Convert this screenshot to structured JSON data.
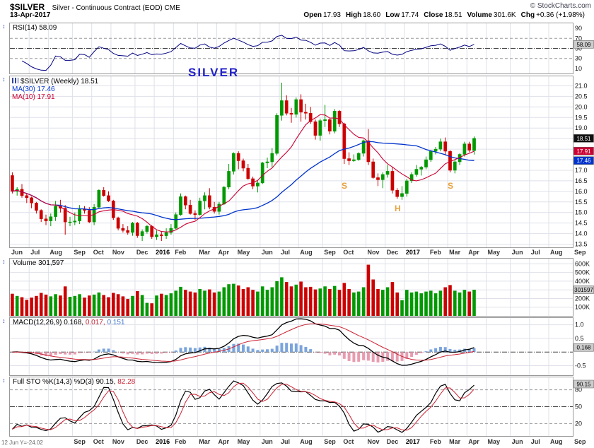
{
  "header": {
    "symbol": "$SILVER",
    "title": "Silver - Continuous Contract (EOD) CME",
    "copyright": "© StockCharts.com",
    "date": "13-Apr-2017",
    "quote": [
      {
        "label": "Open",
        "value": "17.93"
      },
      {
        "label": "High",
        "value": "18.60"
      },
      {
        "label": "Low",
        "value": "17.74"
      },
      {
        "label": "Close",
        "value": "18.51"
      },
      {
        "label": "Volume",
        "value": "301.6K"
      },
      {
        "label": "Chg",
        "value": "+0.36 (+1.98%)"
      }
    ]
  },
  "statusbar": "12 Jun Y=-24.02",
  "colors": {
    "up": "#009900",
    "down": "#cc0000",
    "ma10": "#cc0033",
    "ma30": "#0033cc",
    "rsi": "#000080",
    "macd_line": "#000000",
    "macd_signal": "#cc2233",
    "hist_pos": "#7aa4dc",
    "hist_neg": "#e89cb0",
    "sto_k": "#000000",
    "sto_d": "#cc2233",
    "grid": "#dfe0ea",
    "frame": "#999999",
    "annotation": "#e8a13c",
    "title_annotation": "#2222cc",
    "box_gray_bg": "#cccccc",
    "box_price_bg": "#111111"
  },
  "panels": {
    "rsi": {
      "legend": "RSI(14) 58.09",
      "ticks": [
        {
          "v": 90,
          "t": "90"
        },
        {
          "v": 70,
          "t": "70"
        },
        {
          "v": 50,
          "t": "50"
        },
        {
          "v": 30,
          "t": "30"
        },
        {
          "v": 10,
          "t": "10"
        }
      ],
      "box": {
        "v": 58.09,
        "t": "58.09"
      }
    },
    "price": {
      "legend_symbol": "$SILVER (Weekly) 18.51",
      "legend_ma30": "MA(30) 17.46",
      "legend_ma10": "MA(10) 17.91",
      "ticks": [
        {
          "v": 21.0,
          "t": "21.0"
        },
        {
          "v": 20.5,
          "t": "20.5"
        },
        {
          "v": 20.0,
          "t": "20.0"
        },
        {
          "v": 19.5,
          "t": "19.5"
        },
        {
          "v": 19.0,
          "t": "19.0"
        },
        {
          "v": 17.0,
          "t": "17.0"
        },
        {
          "v": 16.5,
          "t": "16.5"
        },
        {
          "v": 16.0,
          "t": "16.0"
        },
        {
          "v": 15.5,
          "t": "15.5"
        },
        {
          "v": 15.0,
          "t": "15.0"
        },
        {
          "v": 14.5,
          "t": "14.5"
        },
        {
          "v": 14.0,
          "t": "14.0"
        },
        {
          "v": 13.5,
          "t": "13.5"
        }
      ],
      "boxes": [
        {
          "v": 18.51,
          "t": "18.51",
          "bg": "#111111",
          "fg": "#ffffff"
        },
        {
          "v": 17.91,
          "t": "17.91",
          "bg": "#cc0033",
          "fg": "#ffffff"
        },
        {
          "v": 17.46,
          "t": "17.46",
          "bg": "#0033cc",
          "fg": "#ffffff"
        }
      ]
    },
    "volume": {
      "legend": "Volume 301,597",
      "ticks": [
        {
          "v": 600,
          "t": "600K"
        },
        {
          "v": 500,
          "t": "500K"
        },
        {
          "v": 400,
          "t": "400K"
        },
        {
          "v": 300,
          "t": "300K"
        },
        {
          "v": 200,
          "t": "200K"
        },
        {
          "v": 100,
          "t": "100K"
        }
      ],
      "box": {
        "v": 301.597,
        "t": "301597"
      }
    },
    "macd": {
      "legend_base": "MACD(12,26,9)",
      "v1": "0.168,",
      "v2": "0.017,",
      "v3": "0.151",
      "ticks": [
        {
          "v": 1,
          "t": "1.0"
        },
        {
          "v": 0.5,
          "t": "0.5"
        },
        {
          "v": -0.5,
          "t": "-0.5"
        }
      ],
      "box": {
        "v": 0.168,
        "t": "0.168"
      }
    },
    "sto": {
      "legend_base": "Full STO %K(14,3) %D(3)",
      "v1": "90.15,",
      "v2": "82.28",
      "ticks": [
        {
          "v": 80,
          "t": "80"
        },
        {
          "v": 50,
          "t": "50"
        },
        {
          "v": 20,
          "t": "20"
        }
      ],
      "box": {
        "v": 90.15,
        "t": "90.15"
      }
    }
  },
  "chart_data": {
    "type": "candlestick",
    "title": "$SILVER Silver - Continuous Contract (EOD) CME, Weekly",
    "legend_position": "top-left",
    "grid": true,
    "price_ylim": [
      13.35,
      21.45
    ],
    "volume_ylim": [
      0,
      660
    ],
    "rsi_ylim": [
      0,
      100
    ],
    "macd_ylim": [
      -0.85,
      1.25
    ],
    "sto_ylim": [
      -2,
      102
    ],
    "indicators": {
      "rsi_period": 14,
      "ma_short": 10,
      "ma_long": 30,
      "macd_params": [
        12,
        26,
        9
      ],
      "sto_params": [
        14,
        3,
        3
      ]
    },
    "x_months": [
      {
        "label": "Jun",
        "weeks": 4
      },
      {
        "label": "Jul",
        "weeks": 4
      },
      {
        "label": "Aug",
        "weeks": 5
      },
      {
        "label": "Sep",
        "weeks": 4
      },
      {
        "label": "Oct",
        "weeks": 4
      },
      {
        "label": "Nov",
        "weeks": 5
      },
      {
        "label": "Dec",
        "weeks": 4
      },
      {
        "label": "2016",
        "weeks": 4,
        "year": true
      },
      {
        "label": "Feb",
        "weeks": 5
      },
      {
        "label": "Mar",
        "weeks": 4
      },
      {
        "label": "Apr",
        "weeks": 4
      },
      {
        "label": "May",
        "weeks": 5
      },
      {
        "label": "Jun",
        "weeks": 4
      },
      {
        "label": "Jul",
        "weeks": 4
      },
      {
        "label": "Aug",
        "weeks": 5
      },
      {
        "label": "Sep",
        "weeks": 4
      },
      {
        "label": "Oct",
        "weeks": 5
      },
      {
        "label": "Nov",
        "weeks": 4
      },
      {
        "label": "Dec",
        "weeks": 4
      },
      {
        "label": "2017",
        "weeks": 5,
        "year": true
      },
      {
        "label": "Feb",
        "weeks": 4
      },
      {
        "label": "Mar",
        "weeks": 4
      },
      {
        "label": "Apr",
        "weeks": 4
      },
      {
        "label": "May",
        "weeks": 5
      },
      {
        "label": "Jun",
        "weeks": 4
      },
      {
        "label": "Jul",
        "weeks": 4
      },
      {
        "label": "Aug",
        "weeks": 5
      },
      {
        "label": "Sep",
        "weeks": 0
      }
    ],
    "ohlc": [
      [
        16.75,
        16.9,
        15.9,
        16.0
      ],
      [
        16.0,
        16.2,
        15.8,
        16.1
      ],
      [
        16.1,
        16.35,
        15.7,
        15.8
      ],
      [
        15.8,
        15.9,
        15.45,
        15.7
      ],
      [
        15.7,
        15.75,
        15.2,
        15.45
      ],
      [
        15.45,
        15.5,
        14.95,
        15.1
      ],
      [
        15.1,
        15.15,
        14.55,
        14.7
      ],
      [
        14.7,
        14.9,
        14.4,
        14.6
      ],
      [
        14.6,
        14.95,
        14.35,
        14.8
      ],
      [
        14.8,
        15.55,
        14.6,
        15.3
      ],
      [
        15.3,
        15.6,
        15.0,
        15.2
      ],
      [
        15.2,
        15.35,
        13.95,
        14.55
      ],
      [
        14.55,
        14.8,
        14.35,
        14.55
      ],
      [
        14.55,
        15.0,
        14.4,
        14.6
      ],
      [
        14.6,
        15.35,
        14.45,
        15.15
      ],
      [
        15.15,
        15.3,
        14.95,
        15.1
      ],
      [
        15.1,
        15.25,
        14.5,
        14.55
      ],
      [
        14.55,
        15.4,
        14.4,
        15.25
      ],
      [
        15.25,
        16.1,
        15.2,
        16.05
      ],
      [
        16.05,
        16.2,
        15.75,
        15.8
      ],
      [
        15.8,
        16.0,
        15.5,
        15.55
      ],
      [
        15.55,
        15.6,
        14.65,
        14.75
      ],
      [
        14.75,
        14.8,
        14.15,
        14.25
      ],
      [
        14.25,
        14.45,
        14.05,
        14.15
      ],
      [
        14.15,
        14.35,
        13.95,
        14.05
      ],
      [
        14.05,
        14.55,
        13.9,
        14.5
      ],
      [
        14.5,
        14.55,
        13.8,
        13.9
      ],
      [
        13.9,
        14.2,
        13.65,
        14.1
      ],
      [
        14.1,
        14.4,
        14.0,
        14.35
      ],
      [
        14.35,
        14.4,
        13.75,
        13.85
      ],
      [
        13.85,
        14.15,
        13.7,
        13.95
      ],
      [
        13.95,
        14.1,
        13.65,
        13.9
      ],
      [
        13.9,
        14.25,
        13.75,
        14.05
      ],
      [
        14.05,
        14.45,
        13.95,
        14.25
      ],
      [
        14.25,
        15.0,
        14.2,
        14.9
      ],
      [
        14.9,
        15.9,
        14.85,
        15.75
      ],
      [
        15.75,
        15.8,
        15.15,
        15.35
      ],
      [
        15.35,
        15.6,
        14.9,
        14.95
      ],
      [
        14.95,
        15.1,
        14.65,
        14.9
      ],
      [
        14.9,
        15.7,
        14.85,
        15.55
      ],
      [
        15.55,
        15.95,
        15.15,
        15.8
      ],
      [
        15.8,
        16.15,
        15.15,
        15.25
      ],
      [
        15.25,
        15.5,
        14.95,
        15.05
      ],
      [
        15.05,
        15.5,
        14.9,
        15.4
      ],
      [
        15.4,
        16.25,
        15.35,
        16.2
      ],
      [
        16.2,
        17.3,
        16.1,
        16.95
      ],
      [
        16.95,
        17.85,
        16.8,
        17.8
      ],
      [
        17.8,
        17.9,
        17.05,
        17.45
      ],
      [
        17.45,
        17.55,
        16.95,
        17.1
      ],
      [
        17.1,
        17.3,
        16.55,
        16.6
      ],
      [
        16.6,
        16.7,
        16.1,
        16.25
      ],
      [
        16.25,
        16.5,
        15.95,
        16.4
      ],
      [
        16.4,
        17.4,
        16.35,
        17.35
      ],
      [
        17.35,
        17.6,
        17.1,
        17.4
      ],
      [
        17.4,
        18.05,
        17.15,
        17.8
      ],
      [
        17.8,
        19.7,
        17.7,
        19.6
      ],
      [
        19.6,
        21.15,
        19.35,
        20.3
      ],
      [
        20.3,
        20.55,
        19.6,
        19.7
      ],
      [
        19.7,
        19.95,
        19.25,
        19.65
      ],
      [
        19.65,
        20.45,
        19.5,
        20.35
      ],
      [
        20.35,
        20.6,
        19.3,
        19.75
      ],
      [
        19.75,
        20.15,
        19.4,
        19.7
      ],
      [
        19.7,
        20.0,
        19.2,
        19.3
      ],
      [
        19.3,
        19.4,
        18.45,
        18.65
      ],
      [
        18.65,
        19.45,
        18.4,
        19.35
      ],
      [
        19.35,
        20.1,
        19.05,
        19.4
      ],
      [
        19.4,
        19.45,
        18.7,
        18.85
      ],
      [
        18.85,
        19.9,
        18.75,
        19.8
      ],
      [
        19.8,
        19.85,
        19.05,
        19.2
      ],
      [
        19.2,
        19.25,
        17.3,
        17.55
      ],
      [
        17.55,
        17.85,
        17.25,
        17.45
      ],
      [
        17.45,
        17.75,
        17.4,
        17.5
      ],
      [
        17.5,
        17.85,
        17.45,
        17.8
      ],
      [
        17.8,
        18.45,
        17.65,
        18.4
      ],
      [
        18.4,
        18.95,
        17.25,
        17.4
      ],
      [
        17.4,
        17.55,
        16.6,
        16.65
      ],
      [
        16.65,
        16.85,
        16.25,
        16.55
      ],
      [
        16.55,
        16.9,
        16.15,
        16.8
      ],
      [
        16.8,
        17.25,
        16.65,
        16.95
      ],
      [
        16.95,
        17.15,
        15.9,
        16.05
      ],
      [
        16.05,
        16.15,
        15.65,
        15.75
      ],
      [
        15.75,
        16.25,
        15.6,
        15.9
      ],
      [
        15.9,
        16.6,
        15.75,
        16.5
      ],
      [
        16.5,
        16.9,
        16.4,
        16.8
      ],
      [
        16.8,
        17.25,
        16.7,
        17.05
      ],
      [
        17.05,
        17.2,
        16.75,
        17.15
      ],
      [
        17.15,
        17.65,
        17.05,
        17.5
      ],
      [
        17.5,
        17.95,
        17.4,
        17.9
      ],
      [
        17.9,
        18.1,
        17.75,
        18.0
      ],
      [
        18.0,
        18.5,
        17.9,
        18.35
      ],
      [
        18.35,
        18.55,
        17.7,
        17.9
      ],
      [
        17.9,
        17.95,
        16.9,
        17.0
      ],
      [
        17.0,
        17.5,
        16.85,
        17.4
      ],
      [
        17.4,
        17.8,
        17.25,
        17.75
      ],
      [
        17.75,
        18.35,
        17.65,
        18.25
      ],
      [
        18.25,
        18.35,
        17.85,
        17.95
      ],
      [
        17.93,
        18.6,
        17.74,
        18.51
      ]
    ],
    "volume_k": [
      255,
      230,
      215,
      185,
      210,
      230,
      265,
      245,
      225,
      250,
      235,
      340,
      220,
      230,
      250,
      210,
      235,
      245,
      270,
      240,
      215,
      265,
      250,
      225,
      195,
      230,
      285,
      240,
      150,
      145,
      235,
      255,
      240,
      260,
      290,
      335,
      300,
      280,
      270,
      310,
      290,
      305,
      270,
      280,
      330,
      365,
      370,
      350,
      310,
      330,
      300,
      280,
      340,
      300,
      330,
      400,
      445,
      390,
      340,
      360,
      395,
      330,
      335,
      305,
      315,
      340,
      310,
      345,
      300,
      380,
      310,
      270,
      280,
      330,
      590,
      420,
      310,
      300,
      330,
      390,
      270,
      180,
      300,
      270,
      280,
      260,
      280,
      290,
      260,
      290,
      330,
      355,
      290,
      270,
      300,
      280,
      301.597
    ],
    "annotations": {
      "title": {
        "text": "SILVER",
        "week": 38,
        "price": 21.4
      },
      "markers": [
        {
          "text": "S",
          "week": 69,
          "price": 16.25
        },
        {
          "text": "H",
          "week": 80,
          "price": 15.2
        },
        {
          "text": "S",
          "week": 91,
          "price": 16.25
        }
      ]
    }
  }
}
